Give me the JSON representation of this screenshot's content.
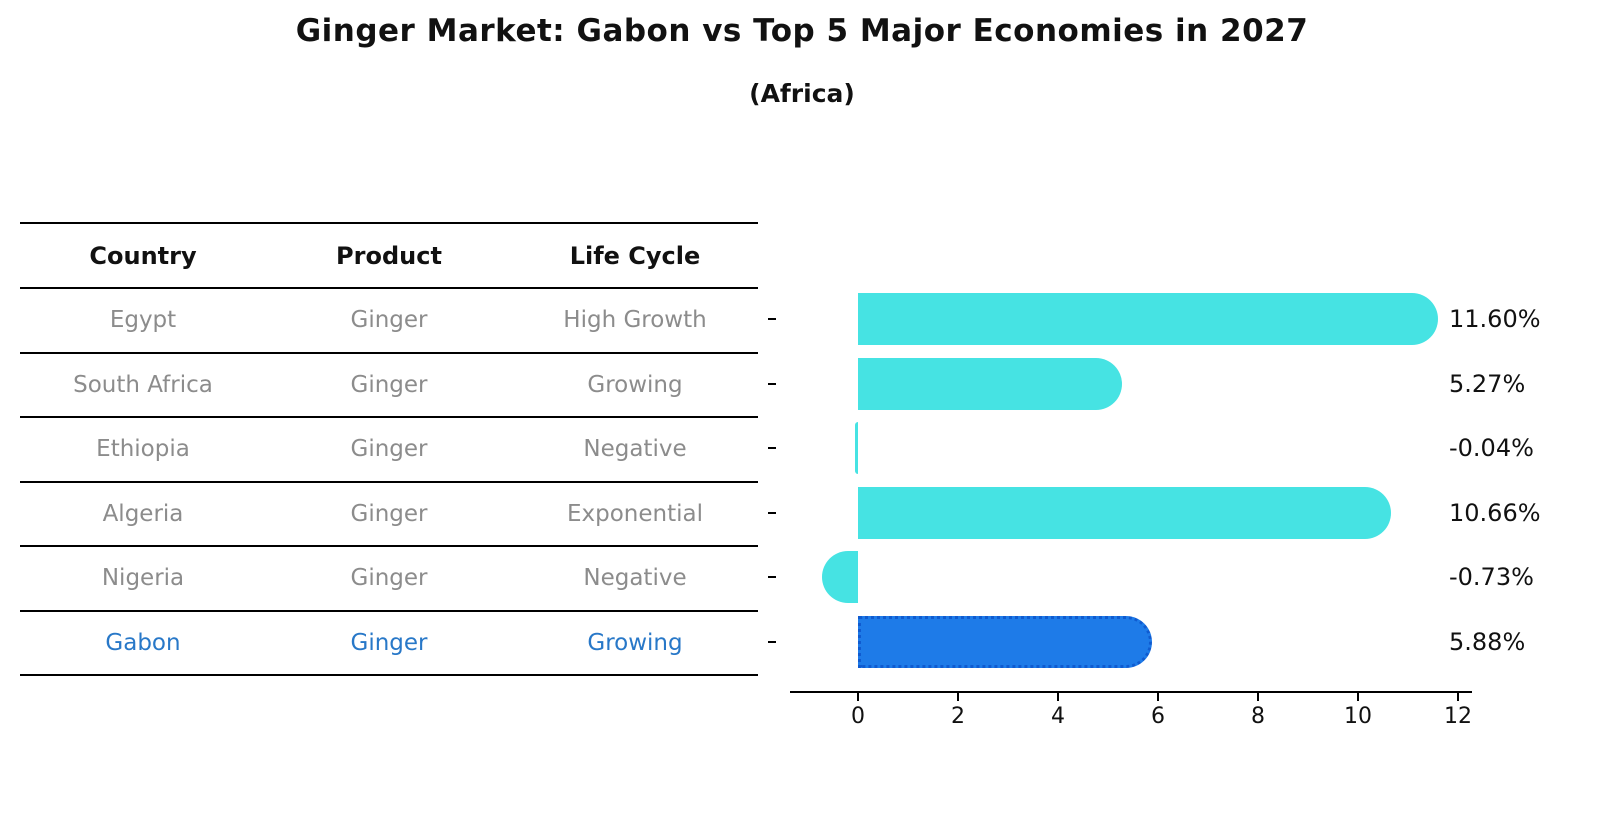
{
  "header": {
    "title": "Ginger Market: Gabon vs Top 5 Major Economies in 2027",
    "subtitle": "(Africa)"
  },
  "chart_data": {
    "type": "bar",
    "orientation": "horizontal",
    "title": "Ginger Market: Gabon vs Top 5 Major Economies in 2027",
    "subtitle": "(Africa)",
    "table": {
      "columns": [
        "Country",
        "Product",
        "Life Cycle"
      ],
      "rows": [
        [
          "Egypt",
          "Ginger",
          "High Growth"
        ],
        [
          "South Africa",
          "Ginger",
          "Growing"
        ],
        [
          "Ethiopia",
          "Ginger",
          "Negative"
        ],
        [
          "Algeria",
          "Ginger",
          "Exponential"
        ],
        [
          "Nigeria",
          "Ginger",
          "Negative"
        ],
        [
          "Gabon",
          "Ginger",
          "Growing"
        ]
      ]
    },
    "categories": [
      "Egypt",
      "South Africa",
      "Ethiopia",
      "Algeria",
      "Nigeria",
      "Gabon"
    ],
    "values": [
      11.6,
      5.27,
      -0.04,
      10.66,
      -0.73,
      5.88
    ],
    "value_labels": [
      "11.60%",
      "5.27%",
      "-0.04%",
      "10.66%",
      "-0.73%",
      "5.88%"
    ],
    "highlight_index": 5,
    "xticks": [
      0,
      2,
      4,
      6,
      8,
      10,
      12
    ],
    "xlim": [
      -1.4,
      12.2
    ],
    "grid": false,
    "legend": null,
    "colors": {
      "bar": "#46e3e3",
      "highlight_bar": "#1e7be8",
      "highlight_border": "#0f5bd0",
      "highlight_text": "#2878c8",
      "row_text": "#8c8c8c",
      "axis": "#000000"
    }
  }
}
